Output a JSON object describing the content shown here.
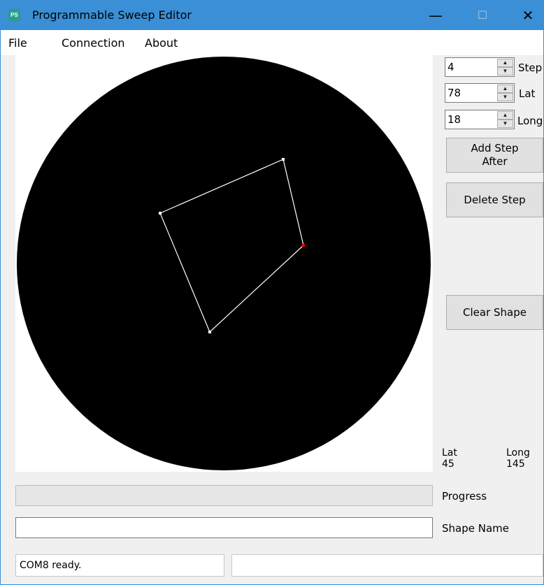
{
  "window": {
    "title": "Programmable Sweep Editor",
    "icon_text": "PS",
    "controls": {
      "minimize": "—",
      "maximize": "☐",
      "close": "✕"
    }
  },
  "menu": {
    "items": [
      "File",
      "Connection",
      "About"
    ]
  },
  "controls": {
    "step": {
      "value": "4",
      "label": "Step"
    },
    "lat": {
      "value": "78",
      "label": "Lat"
    },
    "long": {
      "value": "18",
      "label": "Long"
    }
  },
  "buttons": {
    "add_step_after": "Add Step After",
    "delete_step": "Delete Step",
    "clear_shape": "Clear Shape"
  },
  "cursor_info": {
    "lat_label": "Lat",
    "lat_value": "45",
    "long_label": "Long",
    "long_value": "145"
  },
  "progress": {
    "label": "Progress",
    "fraction": 0
  },
  "shape_name": {
    "label": "Shape Name",
    "value": ""
  },
  "status": {
    "left": "COM8 ready.",
    "right": ""
  },
  "colors": {
    "titlebar": "#3a8fd6",
    "canvas_background": "#ffffff",
    "disc": "#000000",
    "shape_line": "#ffffff",
    "vertex": "#ffffff",
    "selected_vertex": "#ff0000"
  },
  "shape": {
    "vertex_count": 4,
    "selected_step": 4
  }
}
